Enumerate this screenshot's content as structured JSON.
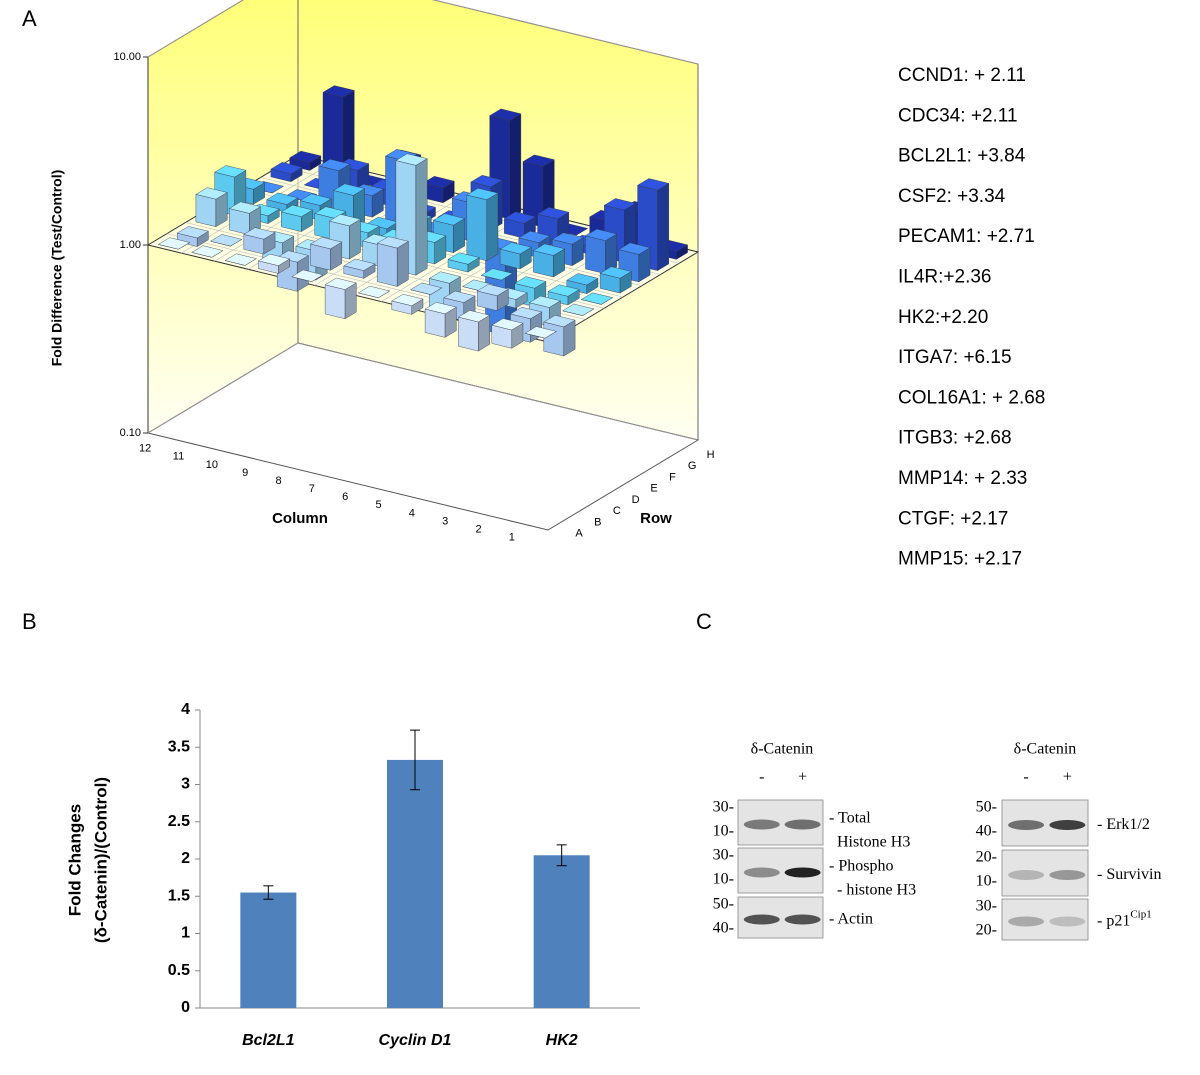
{
  "panel_labels": [
    "A",
    "B",
    "C"
  ],
  "chart_data": [
    {
      "type": "bar3d",
      "y_label": "Fold Difference (Test/Control)",
      "column_label": "Column",
      "row_label": "Row",
      "columns": [
        "1",
        "2",
        "3",
        "4",
        "5",
        "6",
        "7",
        "8",
        "9",
        "10",
        "11",
        "12"
      ],
      "rows": [
        "A",
        "B",
        "C",
        "D",
        "E",
        "F",
        "G",
        "H"
      ],
      "log_scale": true,
      "ylim": [
        0.1,
        10
      ],
      "yticks": [
        {
          "value": 10,
          "label": "10.00"
        },
        {
          "value": 1,
          "label": "1.00"
        },
        {
          "value": 0.1,
          "label": "0.10"
        }
      ],
      "row_colors": [
        "#c9def6",
        "#a6c8ee",
        "#9fd4f2",
        "#5cc9ee",
        "#48b0e4",
        "#3e7ee0",
        "#2a4cc8",
        "#1a2a98"
      ],
      "values": [
        [
          1.0,
          0.8,
          0.7,
          0.75,
          0.9,
          1.0,
          0.7,
          1.0,
          1.1,
          1.0,
          1.0,
          1.0
        ],
        [
          0.7,
          0.75,
          1.2,
          0.8,
          1.0,
          1.6,
          1.1,
          1.3,
          0.7,
          1.2,
          1.0,
          0.9
        ],
        [
          1.0,
          0.8,
          0.9,
          1.0,
          0.7,
          3.84,
          1.3,
          1.5,
          0.7,
          0.7,
          1.3,
          1.4
        ],
        [
          1.0,
          0.9,
          0.8,
          1.0,
          1.1,
          1.3,
          1.2,
          1.2,
          1.3,
          1.2,
          1.1,
          1.6
        ],
        [
          1.2,
          0.9,
          1.3,
          1.2,
          2.11,
          1.4,
          1.3,
          1.1,
          1.5,
          1.2,
          1.1,
          1.2
        ],
        [
          1.4,
          1.5,
          1.3,
          1.2,
          0.35,
          1.6,
          1.0,
          2.2,
          1.3,
          1.6,
          1.0,
          1.0
        ],
        [
          2.68,
          1.9,
          1.1,
          1.4,
          1.2,
          1.7,
          1.0,
          0.9,
          1.2,
          1.4,
          1.0,
          1.1
        ],
        [
          1.1,
          1.6,
          1.3,
          1.0,
          2.1,
          3.34,
          1.0,
          1.2,
          1.5,
          1.0,
          2.71,
          1.1
        ]
      ]
    },
    {
      "type": "bar",
      "y_label": [
        "Fold Changes",
        "(δ-Catenin)/(Control)"
      ],
      "categories": [
        "Bcl2L1",
        "Cyclin D1",
        "HK2"
      ],
      "values": [
        1.55,
        3.33,
        2.05
      ],
      "errors": [
        0.09,
        0.4,
        0.14
      ],
      "color": "#4f81bd",
      "ylim": [
        0,
        4
      ],
      "yticks": [
        0,
        0.5,
        1,
        1.5,
        2,
        2.5,
        3,
        3.5,
        4
      ]
    }
  ],
  "gene_list": [
    "CCND1: + 2.11",
    "CDC34: +2.11",
    "BCL2L1: +3.84",
    "CSF2: +3.34",
    "PECAM1: +2.71",
    "IL4R:+2.36",
    "HK2:+2.20",
    "ITGA7: +6.15",
    "COL16A1: + 2.68",
    "ITGB3: +2.68",
    "MMP14: + 2.33",
    "CTGF: +2.17",
    "MMP15: +2.17"
  ],
  "blots": [
    {
      "title": "δ-Catenin",
      "lanes": [
        "-",
        "+"
      ],
      "rows": [
        {
          "markers": [
            "30-",
            "10-"
          ],
          "labels": [
            "- Total",
            "Histone H3"
          ]
        },
        {
          "markers": [
            "30-",
            "10-"
          ],
          "labels": [
            "- Phospho",
            "- histone H3"
          ]
        },
        {
          "markers": [
            "50-",
            "40-"
          ],
          "labels": [
            "- Actin"
          ]
        }
      ]
    },
    {
      "title": "δ-Catenin",
      "lanes": [
        "-",
        "+"
      ],
      "rows": [
        {
          "markers": [
            "50-",
            "40-"
          ],
          "labels": [
            "- Erk1/2"
          ]
        },
        {
          "markers": [
            "20-",
            "10-"
          ],
          "labels": [
            "- Survivin"
          ]
        },
        {
          "markers": [
            "30-",
            "20-"
          ],
          "labels": [
            "- p21"
          ],
          "superscript": "Cip1"
        }
      ]
    }
  ]
}
